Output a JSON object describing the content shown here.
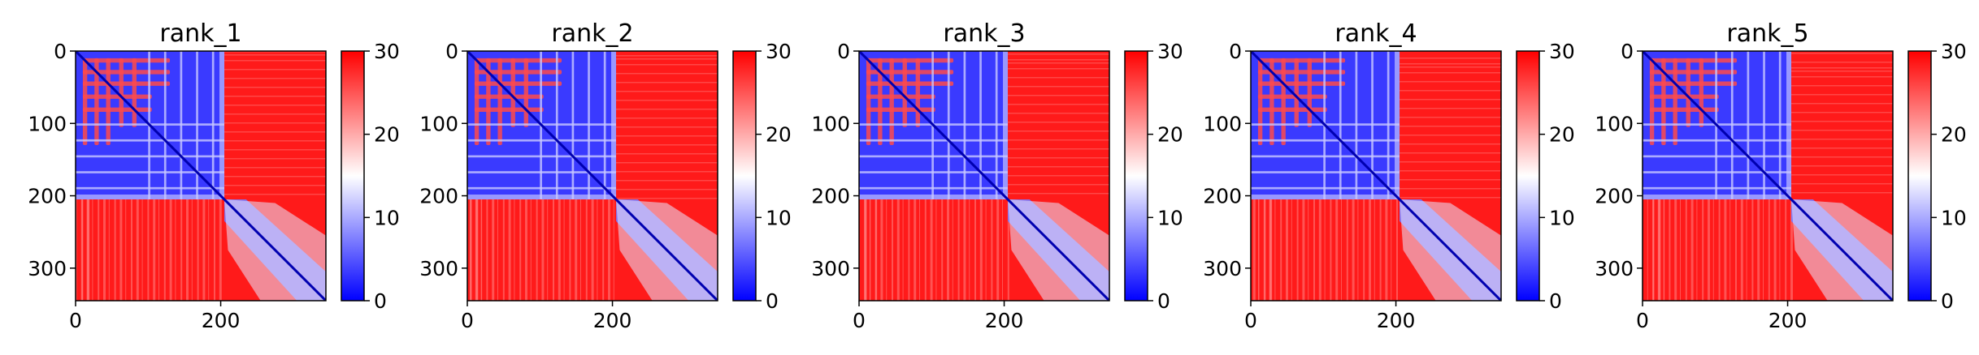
{
  "chart_data": [
    {
      "type": "heatmap",
      "title": "rank_1",
      "x_ticks": [
        0,
        200
      ],
      "y_ticks": [
        0,
        100,
        200,
        300
      ],
      "matrix_size": 345,
      "colorbar": {
        "min": 0,
        "max": 30,
        "ticks": [
          0,
          10,
          20,
          30
        ],
        "colors": [
          "#0000ff",
          "#ffffff",
          "#ff0000"
        ]
      },
      "domain_boundary": 205,
      "blocks": [
        [
          0,
          40
        ],
        [
          40,
          90
        ],
        [
          90,
          205
        ],
        [
          205,
          345
        ]
      ]
    },
    {
      "type": "heatmap",
      "title": "rank_2",
      "x_ticks": [
        0,
        200
      ],
      "y_ticks": [
        0,
        100,
        200,
        300
      ],
      "matrix_size": 345,
      "colorbar": {
        "min": 0,
        "max": 30,
        "ticks": [
          0,
          10,
          20,
          30
        ],
        "colors": [
          "#0000ff",
          "#ffffff",
          "#ff0000"
        ]
      },
      "domain_boundary": 205,
      "blocks": [
        [
          0,
          40
        ],
        [
          40,
          90
        ],
        [
          90,
          205
        ],
        [
          205,
          345
        ]
      ]
    },
    {
      "type": "heatmap",
      "title": "rank_3",
      "x_ticks": [
        0,
        200
      ],
      "y_ticks": [
        0,
        100,
        200,
        300
      ],
      "matrix_size": 345,
      "colorbar": {
        "min": 0,
        "max": 30,
        "ticks": [
          0,
          10,
          20,
          30
        ],
        "colors": [
          "#0000ff",
          "#ffffff",
          "#ff0000"
        ]
      },
      "domain_boundary": 205,
      "blocks": [
        [
          0,
          40
        ],
        [
          40,
          90
        ],
        [
          90,
          205
        ],
        [
          205,
          345
        ]
      ]
    },
    {
      "type": "heatmap",
      "title": "rank_4",
      "x_ticks": [
        0,
        200
      ],
      "y_ticks": [
        0,
        100,
        200,
        300
      ],
      "matrix_size": 345,
      "colorbar": {
        "min": 0,
        "max": 30,
        "ticks": [
          0,
          10,
          20,
          30
        ],
        "colors": [
          "#0000ff",
          "#ffffff",
          "#ff0000"
        ]
      },
      "domain_boundary": 205,
      "blocks": [
        [
          0,
          40
        ],
        [
          40,
          90
        ],
        [
          90,
          205
        ],
        [
          205,
          345
        ]
      ]
    },
    {
      "type": "heatmap",
      "title": "rank_5",
      "x_ticks": [
        0,
        200
      ],
      "y_ticks": [
        0,
        100,
        200,
        300
      ],
      "matrix_size": 345,
      "colorbar": {
        "min": 0,
        "max": 30,
        "ticks": [
          0,
          10,
          20,
          30
        ],
        "colors": [
          "#0000ff",
          "#ffffff",
          "#ff0000"
        ]
      },
      "domain_boundary": 205,
      "blocks": [
        [
          0,
          40
        ],
        [
          40,
          90
        ],
        [
          90,
          205
        ],
        [
          205,
          345
        ]
      ]
    }
  ]
}
